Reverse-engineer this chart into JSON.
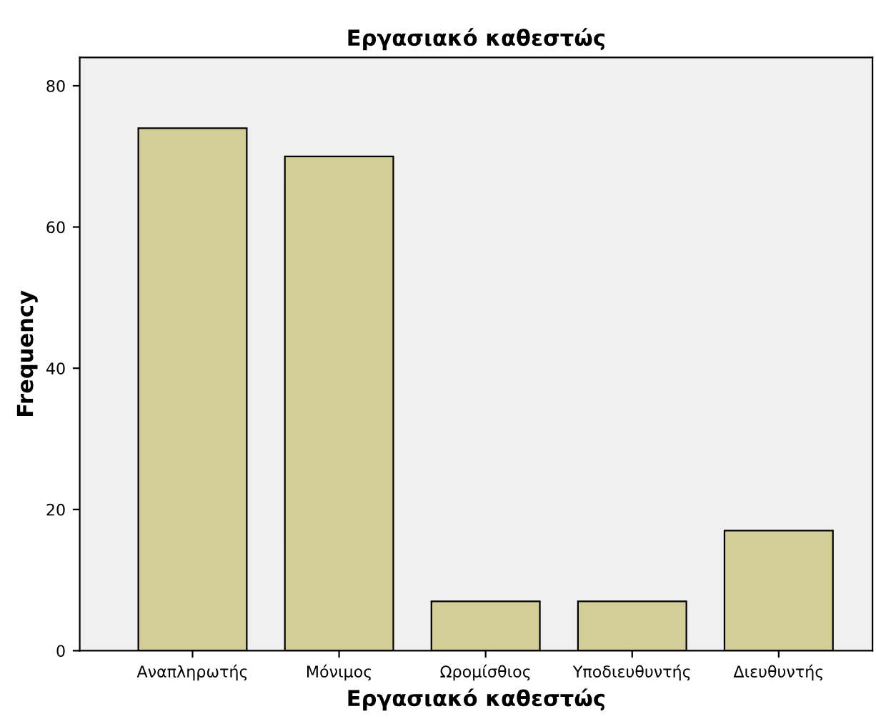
{
  "chart_data": {
    "type": "bar",
    "title": "Εργασιακό καθεστώς",
    "xlabel": "Εργασιακό καθεστώς",
    "ylabel": "Frequency",
    "categories": [
      "Αναπληρωτής",
      "Μόνιμος",
      "Ωρομίσθιος",
      "Υποδιευθυντής",
      "Διευθυντής"
    ],
    "values": [
      74,
      70,
      7,
      7,
      17
    ],
    "color": "#d3ce97",
    "ylim": [
      0,
      84
    ],
    "yticks": [
      0,
      20,
      40,
      60,
      80
    ],
    "grid": false
  }
}
